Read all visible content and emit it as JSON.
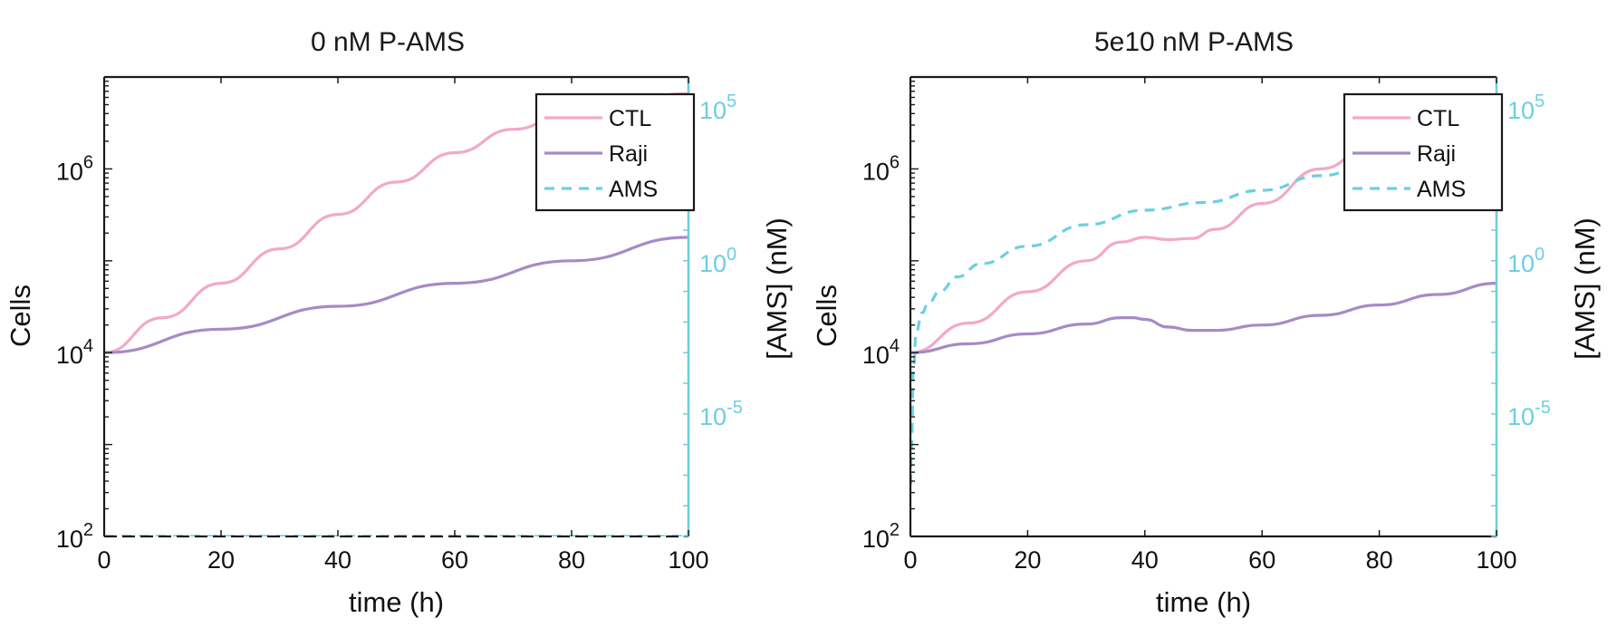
{
  "colors": {
    "ctl": "#f2a9c9",
    "raji": "#a68bc6",
    "ams": "#6dcfe0",
    "axis": "#1a1a1a",
    "right_axis": "#6dcfe0"
  },
  "chart_data": [
    {
      "type": "line",
      "title": "0 nM P-AMS",
      "xlabel": "time (h)",
      "ylabel": "Cells",
      "y2label": "[AMS] (nM)",
      "xlim": [
        0,
        100
      ],
      "ylim": [
        100,
        10000000
      ],
      "yscale": "log",
      "y2lim": [
        1e-09,
        1000000
      ],
      "y2scale": "log",
      "x_ticks": [
        "0",
        "20",
        "40",
        "60",
        "80",
        "100"
      ],
      "y_ticks": [
        {
          "base": "10",
          "exp": "2"
        },
        {
          "base": "10",
          "exp": "4"
        },
        {
          "base": "10",
          "exp": "6"
        }
      ],
      "y2_ticks": [
        {
          "base": "10",
          "exp": "-5"
        },
        {
          "base": "10",
          "exp": "0"
        },
        {
          "base": "10",
          "exp": "5"
        }
      ],
      "legend": {
        "position": "top-right",
        "entries": [
          "CTL",
          "Raji",
          "AMS"
        ]
      },
      "series": [
        {
          "name": "CTL",
          "axis": "left",
          "style": "solid",
          "x": [
            0,
            10,
            20,
            30,
            40,
            50,
            60,
            70,
            80,
            90,
            100
          ],
          "y": [
            10000,
            24000,
            57000,
            135000,
            320000,
            720000,
            1500000,
            2700000,
            4300000,
            5800000,
            6600000
          ]
        },
        {
          "name": "Raji",
          "axis": "left",
          "style": "solid",
          "x": [
            0,
            20,
            40,
            60,
            80,
            100
          ],
          "y": [
            10000,
            18000,
            32000,
            57000,
            100000,
            180000
          ]
        },
        {
          "name": "AMS",
          "axis": "right",
          "style": "dashed",
          "x": [
            0,
            100
          ],
          "y": [
            1e-09,
            1e-09
          ]
        }
      ]
    },
    {
      "type": "line",
      "title": "5e10 nM P-AMS",
      "xlabel": "time (h)",
      "ylabel": "Cells",
      "y2label": "[AMS] (nM)",
      "xlim": [
        0,
        100
      ],
      "ylim": [
        100,
        10000000
      ],
      "yscale": "log",
      "y2lim": [
        1e-09,
        1000000
      ],
      "y2scale": "log",
      "x_ticks": [
        "0",
        "20",
        "40",
        "60",
        "80",
        "100"
      ],
      "y_ticks": [
        {
          "base": "10",
          "exp": "2"
        },
        {
          "base": "10",
          "exp": "4"
        },
        {
          "base": "10",
          "exp": "6"
        }
      ],
      "y2_ticks": [
        {
          "base": "10",
          "exp": "-5"
        },
        {
          "base": "10",
          "exp": "0"
        },
        {
          "base": "10",
          "exp": "5"
        }
      ],
      "legend": {
        "position": "top-right",
        "entries": [
          "CTL",
          "Raji",
          "AMS"
        ]
      },
      "series": [
        {
          "name": "CTL",
          "axis": "left",
          "style": "solid",
          "x": [
            0,
            10,
            20,
            30,
            36,
            40,
            44,
            48,
            52,
            60,
            70,
            80,
            90,
            100
          ],
          "y": [
            10000,
            21000,
            46000,
            100000,
            160000,
            180000,
            170000,
            175000,
            220000,
            420000,
            1000000,
            2200000,
            3600000,
            4600000
          ]
        },
        {
          "name": "Raji",
          "axis": "left",
          "style": "solid",
          "x": [
            0,
            10,
            20,
            30,
            36,
            38,
            40,
            44,
            48,
            52,
            60,
            70,
            80,
            90,
            100
          ],
          "y": [
            10000,
            12500,
            16000,
            20500,
            24000,
            24000,
            23000,
            19000,
            17500,
            17500,
            20000,
            25500,
            33000,
            43000,
            57000
          ]
        },
        {
          "name": "AMS",
          "axis": "right",
          "style": "dashed",
          "x": [
            0,
            0.2,
            0.5,
            1,
            2,
            3,
            5,
            8,
            12,
            20,
            30,
            40,
            50,
            60,
            70,
            80,
            90,
            100
          ],
          "y": [
            5e-08,
            1e-06,
            0.0003,
            0.005,
            0.02,
            0.04,
            0.1,
            0.3,
            0.8,
            3,
            15,
            45,
            80,
            200,
            600,
            2000,
            4000,
            8000
          ]
        }
      ]
    }
  ]
}
